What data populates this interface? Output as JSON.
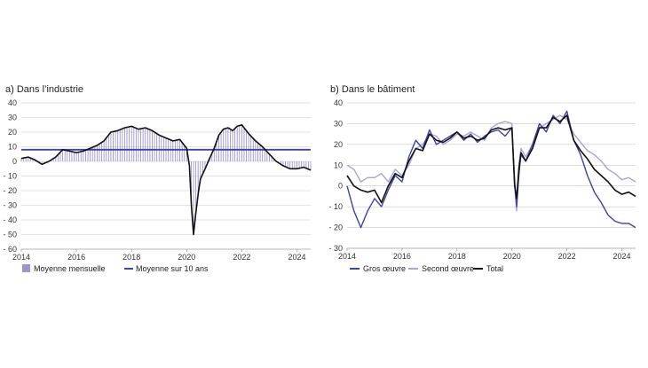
{
  "chart_data": [
    {
      "type": "bar",
      "title": "a) Dans l’industrie",
      "xlabel": "",
      "ylabel": "",
      "x_ticks": [
        "2014",
        "2016",
        "2018",
        "2020",
        "2022",
        "2024"
      ],
      "x_tick_values": [
        2014,
        2016,
        2018,
        2020,
        2022,
        2024
      ],
      "xlim": [
        2014,
        2024.5
      ],
      "y_ticks": [
        "40",
        "30",
        "20",
        "10",
        "0",
        "- 10",
        "- 20",
        "- 30",
        "- 40",
        "- 50",
        "- 60"
      ],
      "y_tick_values": [
        40,
        30,
        20,
        10,
        0,
        -10,
        -20,
        -30,
        -40,
        -50,
        -60
      ],
      "ylim": [
        -60,
        40
      ],
      "grid": "horizontal",
      "legend": {
        "position": "bottom",
        "items": [
          "Moyenne mensuelle",
          "Moyenne sur 10 ans"
        ]
      },
      "colors": {
        "bars": "#9c95cf",
        "mean_line": "#3c46a0",
        "series_line": "#111111",
        "grid": "#c8c8c8"
      },
      "ten_year_average": 8,
      "series": [
        {
          "name": "Moyenne mensuelle",
          "x": [
            2014.0,
            2014.25,
            2014.5,
            2014.75,
            2015.0,
            2015.25,
            2015.5,
            2015.75,
            2016.0,
            2016.25,
            2016.5,
            2016.75,
            2017.0,
            2017.25,
            2017.5,
            2017.75,
            2018.0,
            2018.25,
            2018.5,
            2018.75,
            2019.0,
            2019.25,
            2019.5,
            2019.75,
            2020.0,
            2020.1,
            2020.17,
            2020.25,
            2020.33,
            2020.42,
            2020.5,
            2020.67,
            2020.83,
            2021.0,
            2021.17,
            2021.33,
            2021.5,
            2021.67,
            2021.83,
            2022.0,
            2022.25,
            2022.5,
            2022.75,
            2023.0,
            2023.25,
            2023.5,
            2023.75,
            2024.0,
            2024.25,
            2024.5
          ],
          "values": [
            2,
            3,
            1,
            -2,
            0,
            3,
            8,
            7,
            6,
            7,
            9,
            11,
            14,
            20,
            21,
            23,
            24,
            22,
            23,
            21,
            18,
            16,
            14,
            15,
            9,
            -3,
            -30,
            -50,
            -36,
            -22,
            -12,
            -5,
            2,
            9,
            18,
            22,
            23,
            21,
            24,
            25,
            19,
            14,
            10,
            5,
            0,
            -3,
            -5,
            -5,
            -4,
            -6
          ]
        }
      ]
    },
    {
      "type": "line",
      "title": "b) Dans le bâtiment",
      "xlabel": "",
      "ylabel": "",
      "x_ticks": [
        "2014",
        "2016",
        "2018",
        "2020",
        "2022",
        "2024"
      ],
      "x_tick_values": [
        2014,
        2016,
        2018,
        2020,
        2022,
        2024
      ],
      "xlim": [
        2014,
        2024.5
      ],
      "y_ticks": [
        "40",
        "30",
        "20",
        "10",
        "0",
        "- 10",
        "- 20",
        "- 30"
      ],
      "y_tick_values": [
        40,
        30,
        20,
        10,
        0,
        -10,
        -20,
        -30
      ],
      "ylim": [
        -30,
        40
      ],
      "grid": "horizontal",
      "legend": {
        "position": "bottom",
        "items": [
          "Gros œuvre",
          "Second œuvre",
          "Total"
        ]
      },
      "x": [
        2014.0,
        2014.25,
        2014.5,
        2014.75,
        2015.0,
        2015.25,
        2015.5,
        2015.75,
        2016.0,
        2016.25,
        2016.5,
        2016.75,
        2017.0,
        2017.25,
        2017.5,
        2017.75,
        2018.0,
        2018.25,
        2018.5,
        2018.75,
        2019.0,
        2019.25,
        2019.5,
        2019.75,
        2020.0,
        2020.1,
        2020.17,
        2020.25,
        2020.33,
        2020.5,
        2020.75,
        2021.0,
        2021.25,
        2021.5,
        2021.75,
        2022.0,
        2022.25,
        2022.5,
        2022.75,
        2023.0,
        2023.25,
        2023.5,
        2023.75,
        2024.0,
        2024.25,
        2024.5
      ],
      "series": [
        {
          "name": "Gros œuvre",
          "color": "#3c46a0",
          "values": [
            0,
            -12,
            -20,
            -12,
            -6,
            -10,
            -2,
            5,
            2,
            14,
            22,
            18,
            27,
            20,
            22,
            24,
            26,
            22,
            25,
            21,
            24,
            26,
            27,
            24,
            28,
            2,
            -10,
            5,
            15,
            12,
            20,
            30,
            26,
            34,
            30,
            36,
            22,
            15,
            5,
            -3,
            -8,
            -14,
            -17,
            -18,
            -18,
            -20
          ]
        },
        {
          "name": "Second œuvre",
          "color": "#a8a4d8",
          "values": [
            10,
            8,
            2,
            4,
            4,
            6,
            2,
            8,
            5,
            10,
            18,
            20,
            25,
            24,
            20,
            22,
            25,
            24,
            26,
            24,
            22,
            28,
            30,
            31,
            30,
            0,
            -12,
            10,
            18,
            14,
            20,
            28,
            30,
            32,
            34,
            32,
            25,
            21,
            17,
            15,
            12,
            8,
            6,
            3,
            4,
            2
          ]
        },
        {
          "name": "Total",
          "color": "#111111",
          "values": [
            5,
            0,
            -2,
            -3,
            -2,
            -8,
            0,
            6,
            4,
            12,
            18,
            17,
            25,
            22,
            21,
            23,
            26,
            23,
            24,
            22,
            23,
            27,
            28,
            27,
            28,
            0,
            -6,
            8,
            16,
            12,
            18,
            28,
            28,
            33,
            31,
            34,
            22,
            17,
            13,
            8,
            5,
            2,
            -2,
            -4,
            -3,
            -5
          ]
        }
      ]
    }
  ]
}
